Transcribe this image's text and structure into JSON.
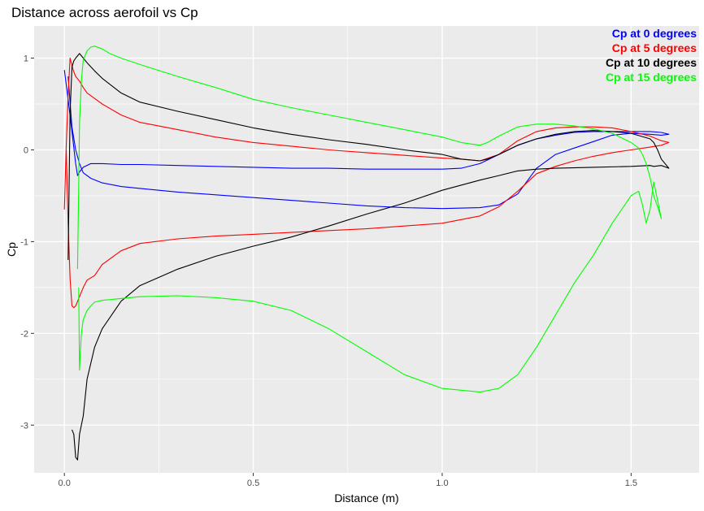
{
  "chart_data": {
    "type": "line",
    "title": "Distance across aerofoil vs Cp",
    "xlabel": "Distance (m)",
    "ylabel": "Cp",
    "xlim": [
      -0.08,
      1.68
    ],
    "ylim": [
      -3.52,
      1.35
    ],
    "x_ticks": [
      0.0,
      0.5,
      1.0,
      1.5
    ],
    "x_tick_labels": [
      "0.0",
      "0.5",
      "1.0",
      "1.5"
    ],
    "y_ticks": [
      -3,
      -2,
      -1,
      0,
      1
    ],
    "y_tick_labels": [
      "-3",
      "-2",
      "-1",
      "0",
      "1"
    ],
    "grid": true,
    "background": "#ebebeb",
    "legend_position": "top-right",
    "series": [
      {
        "name": "Cp at 0 degrees",
        "color": "#0000ff",
        "x": [
          0.0,
          0.01,
          0.02,
          0.03,
          0.035,
          0.04,
          0.05,
          0.07,
          0.1,
          0.15,
          0.2,
          0.3,
          0.4,
          0.5,
          0.6,
          0.7,
          0.8,
          0.9,
          1.0,
          1.05,
          1.1,
          1.15,
          1.2,
          1.25,
          1.3,
          1.35,
          1.4,
          1.45,
          1.5,
          1.55,
          1.58,
          1.6,
          1.58,
          1.55,
          1.5,
          1.45,
          1.4,
          1.35,
          1.3,
          1.25,
          1.2,
          1.15,
          1.1,
          1.0,
          0.9,
          0.8,
          0.7,
          0.6,
          0.5,
          0.4,
          0.3,
          0.2,
          0.15,
          0.1,
          0.07,
          0.05,
          0.04,
          0.03,
          0.02,
          0.01
        ],
        "y": [
          0.87,
          0.55,
          0.2,
          -0.15,
          -0.28,
          -0.24,
          -0.19,
          -0.15,
          -0.15,
          -0.16,
          -0.16,
          -0.17,
          -0.18,
          -0.19,
          -0.2,
          -0.2,
          -0.21,
          -0.21,
          -0.21,
          -0.2,
          -0.15,
          -0.05,
          0.05,
          0.12,
          0.16,
          0.19,
          0.2,
          0.2,
          0.2,
          0.2,
          0.19,
          0.17,
          0.16,
          0.17,
          0.18,
          0.16,
          0.09,
          0.02,
          -0.05,
          -0.2,
          -0.48,
          -0.6,
          -0.63,
          -0.64,
          -0.63,
          -0.61,
          -0.58,
          -0.55,
          -0.52,
          -0.49,
          -0.46,
          -0.42,
          -0.4,
          -0.36,
          -0.31,
          -0.25,
          -0.15,
          0.0,
          0.25,
          0.8
        ]
      },
      {
        "name": "Cp at 5 degrees",
        "color": "#ff0000",
        "x": [
          0.0,
          0.005,
          0.01,
          0.015,
          0.02,
          0.025,
          0.03,
          0.04,
          0.05,
          0.06,
          0.08,
          0.1,
          0.15,
          0.2,
          0.3,
          0.4,
          0.5,
          0.6,
          0.7,
          0.8,
          0.9,
          1.0,
          1.05,
          1.1,
          1.15,
          1.2,
          1.25,
          1.3,
          1.35,
          1.4,
          1.45,
          1.5,
          1.55,
          1.58,
          1.6,
          1.58,
          1.55,
          1.5,
          1.45,
          1.4,
          1.35,
          1.3,
          1.25,
          1.2,
          1.15,
          1.1,
          1.0,
          0.9,
          0.8,
          0.7,
          0.6,
          0.5,
          0.4,
          0.3,
          0.2,
          0.15,
          0.1,
          0.08,
          0.06,
          0.05,
          0.04,
          0.03,
          0.025,
          0.02,
          0.015,
          0.01,
          0.005
        ],
        "y": [
          -0.65,
          0.05,
          0.6,
          1.0,
          0.92,
          0.85,
          0.8,
          0.75,
          0.68,
          0.62,
          0.56,
          0.5,
          0.38,
          0.3,
          0.22,
          0.14,
          0.08,
          0.04,
          0.0,
          -0.03,
          -0.06,
          -0.09,
          -0.1,
          -0.12,
          -0.05,
          0.1,
          0.2,
          0.24,
          0.25,
          0.25,
          0.24,
          0.2,
          0.15,
          0.1,
          0.08,
          0.05,
          0.03,
          0.0,
          -0.03,
          -0.07,
          -0.12,
          -0.18,
          -0.26,
          -0.45,
          -0.62,
          -0.72,
          -0.8,
          -0.83,
          -0.86,
          -0.88,
          -0.9,
          -0.92,
          -0.94,
          -0.97,
          -1.02,
          -1.1,
          -1.25,
          -1.37,
          -1.42,
          -1.5,
          -1.6,
          -1.7,
          -1.72,
          -1.7,
          -1.4,
          -0.8,
          0.0
        ]
      },
      {
        "name": "Cp at 10 degrees",
        "color": "#000000",
        "x": [
          0.01,
          0.015,
          0.02,
          0.025,
          0.03,
          0.04,
          0.05,
          0.06,
          0.08,
          0.1,
          0.15,
          0.2,
          0.3,
          0.4,
          0.5,
          0.6,
          0.7,
          0.8,
          0.9,
          1.0,
          1.05,
          1.1,
          1.12,
          1.15,
          1.2,
          1.25,
          1.3,
          1.35,
          1.4,
          1.45,
          1.5,
          1.55,
          1.56,
          1.57,
          1.58,
          1.6,
          1.58,
          1.56,
          1.55,
          1.5,
          1.4,
          1.3,
          1.25,
          1.2,
          1.15,
          1.1,
          1.0,
          0.9,
          0.8,
          0.7,
          0.6,
          0.5,
          0.4,
          0.3,
          0.2,
          0.15,
          0.1,
          0.08,
          0.06,
          0.05,
          0.04,
          0.035,
          0.03,
          0.025,
          0.02
        ],
        "y": [
          -1.2,
          0.4,
          0.9,
          0.97,
          1.0,
          1.05,
          1.0,
          0.95,
          0.86,
          0.78,
          0.62,
          0.52,
          0.42,
          0.33,
          0.24,
          0.17,
          0.11,
          0.06,
          0.0,
          -0.05,
          -0.1,
          -0.12,
          -0.1,
          -0.05,
          0.05,
          0.12,
          0.17,
          0.2,
          0.21,
          0.2,
          0.18,
          0.12,
          0.08,
          0.0,
          -0.1,
          -0.2,
          -0.17,
          -0.18,
          -0.17,
          -0.18,
          -0.19,
          -0.2,
          -0.21,
          -0.23,
          -0.28,
          -0.33,
          -0.44,
          -0.58,
          -0.7,
          -0.83,
          -0.95,
          -1.05,
          -1.16,
          -1.3,
          -1.48,
          -1.65,
          -1.95,
          -2.15,
          -2.5,
          -2.9,
          -3.1,
          -3.38,
          -3.35,
          -3.1,
          -3.05
        ]
      },
      {
        "name": "Cp at 15 degrees",
        "color": "#00ff00",
        "x": [
          0.035,
          0.038,
          0.04,
          0.045,
          0.05,
          0.06,
          0.07,
          0.08,
          0.1,
          0.12,
          0.15,
          0.2,
          0.3,
          0.4,
          0.5,
          0.6,
          0.7,
          0.8,
          0.9,
          1.0,
          1.05,
          1.1,
          1.12,
          1.15,
          1.2,
          1.25,
          1.3,
          1.35,
          1.4,
          1.45,
          1.48,
          1.5,
          1.52,
          1.53,
          1.54,
          1.55,
          1.56,
          1.57,
          1.58,
          1.57,
          1.56,
          1.55,
          1.54,
          1.53,
          1.52,
          1.5,
          1.45,
          1.4,
          1.35,
          1.3,
          1.25,
          1.2,
          1.15,
          1.1,
          1.0,
          0.9,
          0.8,
          0.7,
          0.6,
          0.5,
          0.4,
          0.3,
          0.2,
          0.15,
          0.1,
          0.08,
          0.07,
          0.06,
          0.05,
          0.045,
          0.04,
          0.038
        ],
        "y": [
          -1.3,
          -0.4,
          0.3,
          0.75,
          0.98,
          1.08,
          1.12,
          1.13,
          1.1,
          1.05,
          1.0,
          0.93,
          0.8,
          0.68,
          0.55,
          0.46,
          0.38,
          0.3,
          0.22,
          0.14,
          0.08,
          0.05,
          0.08,
          0.15,
          0.25,
          0.28,
          0.28,
          0.26,
          0.23,
          0.18,
          0.12,
          0.08,
          0.02,
          -0.05,
          -0.15,
          -0.3,
          -0.5,
          -0.62,
          -0.75,
          -0.55,
          -0.35,
          -0.65,
          -0.8,
          -0.6,
          -0.45,
          -0.5,
          -0.8,
          -1.15,
          -1.45,
          -1.8,
          -2.15,
          -2.45,
          -2.6,
          -2.64,
          -2.6,
          -2.45,
          -2.2,
          -1.95,
          -1.75,
          -1.65,
          -1.61,
          -1.59,
          -1.6,
          -1.62,
          -1.64,
          -1.66,
          -1.7,
          -1.75,
          -1.85,
          -2.0,
          -2.4,
          -1.5
        ]
      }
    ]
  }
}
